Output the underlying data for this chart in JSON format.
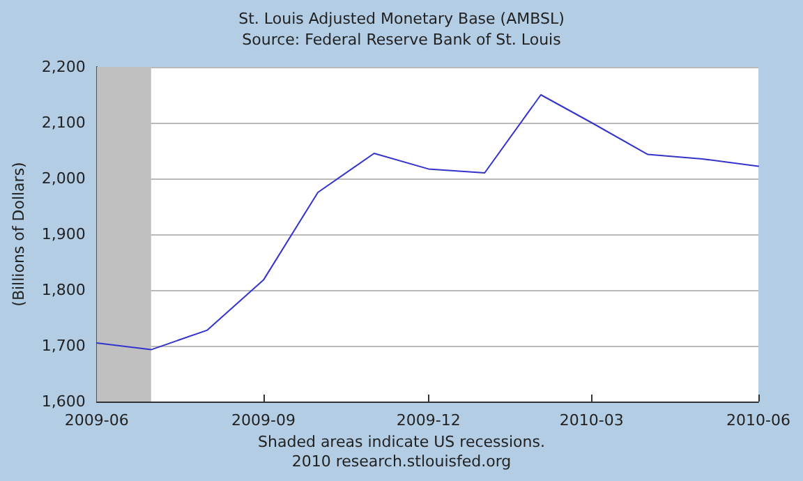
{
  "chart_data": {
    "type": "line",
    "title": "St. Louis Adjusted Monetary Base (AMBSL)",
    "subtitle": "Source: Federal Reserve Bank of St. Louis",
    "ylabel": "(Billions of Dollars)",
    "x": [
      "2009-06",
      "2009-07",
      "2009-08",
      "2009-09",
      "2009-10",
      "2009-11",
      "2009-12",
      "2010-01",
      "2010-02",
      "2010-03",
      "2010-04",
      "2010-05",
      "2010-06"
    ],
    "series": [
      {
        "color": "#3333cc",
        "values": [
          1705,
          1693,
          1728,
          1818,
          1975,
          2045,
          2017,
          2010,
          2150,
          2100,
          2043,
          2035,
          2022
        ]
      }
    ],
    "xlim": [
      "2009-06",
      "2010-06"
    ],
    "xticks": [
      "2009-06",
      "2009-09",
      "2009-12",
      "2010-03",
      "2010-06"
    ],
    "ylim": [
      1600,
      2200
    ],
    "yticks": [
      {
        "value": 1600,
        "label": "1,600"
      },
      {
        "value": 1700,
        "label": "1,700"
      },
      {
        "value": 1800,
        "label": "1,800"
      },
      {
        "value": 1900,
        "label": "1,900"
      },
      {
        "value": 2000,
        "label": "2,000"
      },
      {
        "value": 2100,
        "label": "2,100"
      },
      {
        "value": 2200,
        "label": "2,200"
      }
    ],
    "bands": [
      {
        "axis": "x",
        "from": "2009-06",
        "to": "2009-07",
        "color": "#c0c0c0"
      }
    ],
    "grid": "y",
    "marker": "none",
    "line_style": "solid",
    "annotations": [
      "Shaded areas indicate US recessions.",
      "2010 research.stlouisfed.org"
    ]
  }
}
